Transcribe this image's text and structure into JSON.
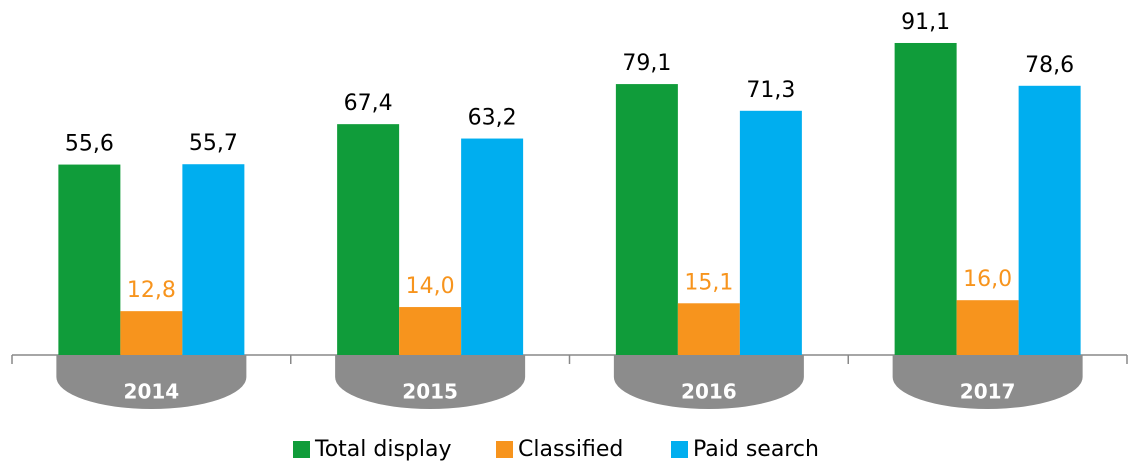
{
  "chart_data": {
    "type": "bar",
    "categories": [
      "2014",
      "2015",
      "2016",
      "2017"
    ],
    "series": [
      {
        "name": "Total display",
        "color": "#109c3a",
        "values": [
          55.6,
          67.4,
          79.1,
          91.1
        ],
        "value_labels": [
          "55,6",
          "67,4",
          "79,1",
          "91,1"
        ]
      },
      {
        "name": "Classified",
        "color": "#f7941d",
        "values": [
          12.8,
          14.0,
          15.1,
          16.0
        ],
        "value_labels": [
          "12,8",
          "14,0",
          "15,1",
          "16,0"
        ]
      },
      {
        "name": "Paid search",
        "color": "#00aeef",
        "values": [
          55.7,
          63.2,
          71.3,
          78.6
        ],
        "value_labels": [
          "55,7",
          "63,2",
          "71,3",
          "78,6"
        ]
      }
    ],
    "ylim": [
      0,
      100
    ]
  }
}
